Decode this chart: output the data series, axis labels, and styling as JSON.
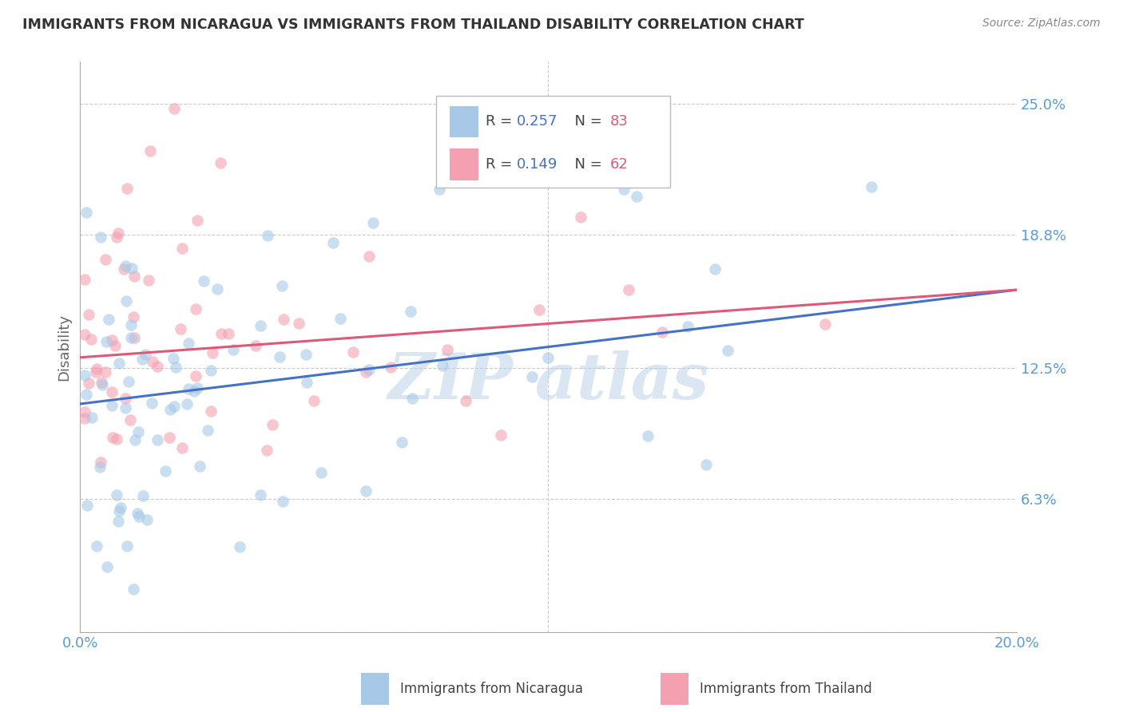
{
  "title": "IMMIGRANTS FROM NICARAGUA VS IMMIGRANTS FROM THAILAND DISABILITY CORRELATION CHART",
  "source": "Source: ZipAtlas.com",
  "ylabel_label": "Disability",
  "series": [
    {
      "name": "Immigrants from Nicaragua",
      "color": "#a8c8e8",
      "line_color": "#4472c4",
      "R": 0.257,
      "N": 83
    },
    {
      "name": "Immigrants from Thailand",
      "color": "#f4a0b0",
      "line_color": "#e05878",
      "R": 0.149,
      "N": 62
    }
  ],
  "xlim": [
    0.0,
    0.2
  ],
  "ylim": [
    0.0,
    0.27
  ],
  "yticks": [
    0.0,
    0.063,
    0.125,
    0.188,
    0.25
  ],
  "ytick_labels": [
    "",
    "6.3%",
    "12.5%",
    "18.8%",
    "25.0%"
  ],
  "xticks": [
    0.0,
    0.05,
    0.1,
    0.15,
    0.2
  ],
  "xtick_labels": [
    "0.0%",
    "",
    "",
    "",
    "20.0%"
  ],
  "grid_color": "#cccccc",
  "background_color": "#ffffff",
  "title_color": "#333333",
  "tick_label_color": "#5b9bd5"
}
